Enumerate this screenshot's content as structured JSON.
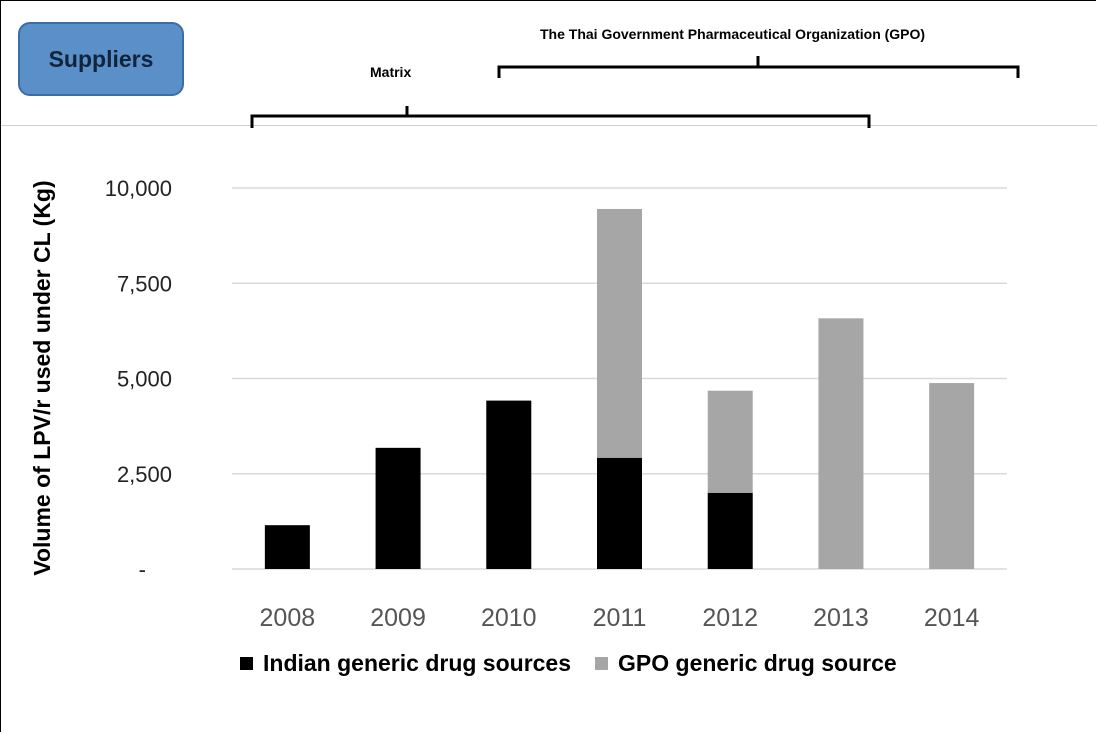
{
  "header": {
    "suppliers_label": "Suppliers",
    "matrix_label": "Matrix",
    "gpo_label": "The Thai Government Pharmaceutical Organization (GPO)"
  },
  "colors": {
    "indian": "#000000",
    "gpo": "#a6a6a6",
    "grid": "#d9d9d9",
    "box": "#5b8fc7"
  },
  "chart_data": {
    "type": "bar",
    "stacked": true,
    "categories": [
      "2008",
      "2009",
      "2010",
      "2011",
      "2012",
      "2013",
      "2014"
    ],
    "series": [
      {
        "name": "Indian generic drug sources",
        "values": [
          1150,
          3180,
          4420,
          2920,
          2000,
          0,
          0
        ]
      },
      {
        "name": "GPO generic drug source",
        "values": [
          0,
          0,
          0,
          6530,
          2680,
          6580,
          4880
        ]
      }
    ],
    "ylabel": "Volume of LPV/r used under CL (Kg)",
    "xlabel": "",
    "ylim": [
      0,
      10000
    ],
    "yticks": [
      0,
      2500,
      5000,
      7500,
      10000
    ],
    "ytick_labels": [
      "-",
      "2,500",
      "5,000",
      "7,500",
      "10,000"
    ],
    "grid": true,
    "legend_position": "bottom"
  }
}
